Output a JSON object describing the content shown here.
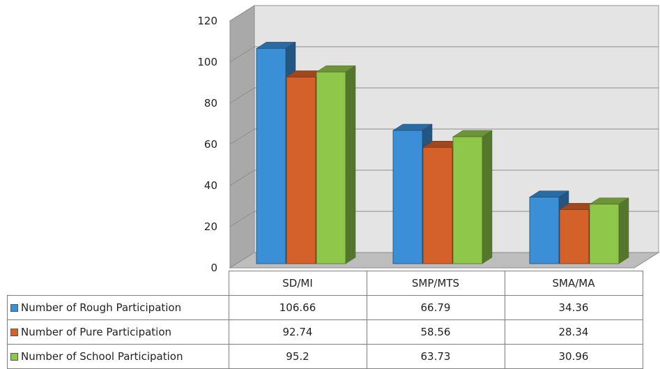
{
  "chart_data": {
    "type": "bar",
    "title": "",
    "xlabel": "",
    "ylabel": "",
    "ylim": [
      0,
      120
    ],
    "yticks": [
      "0",
      "20",
      "40",
      "60",
      "80",
      "100",
      "120"
    ],
    "grid": true,
    "style": "3d-clustered-column-with-data-table",
    "categories": [
      "SD/MI",
      "SMP/MTS",
      "SMA/MA"
    ],
    "series": [
      {
        "name": "Number of Rough Participation",
        "color": "#3a8fd6",
        "values": [
          106.66,
          66.79,
          34.36
        ],
        "labels": [
          "106.66",
          "66.79",
          "34.36"
        ]
      },
      {
        "name": "Number of Pure Participation",
        "color": "#d4602a",
        "values": [
          92.74,
          58.56,
          28.34
        ],
        "labels": [
          "92.74",
          "58.56",
          "28.34"
        ]
      },
      {
        "name": "Number of School Participation",
        "color": "#8ec74a",
        "values": [
          95.2,
          63.73,
          30.96
        ],
        "labels": [
          "95.2",
          "63.73",
          "30.96"
        ]
      }
    ]
  }
}
